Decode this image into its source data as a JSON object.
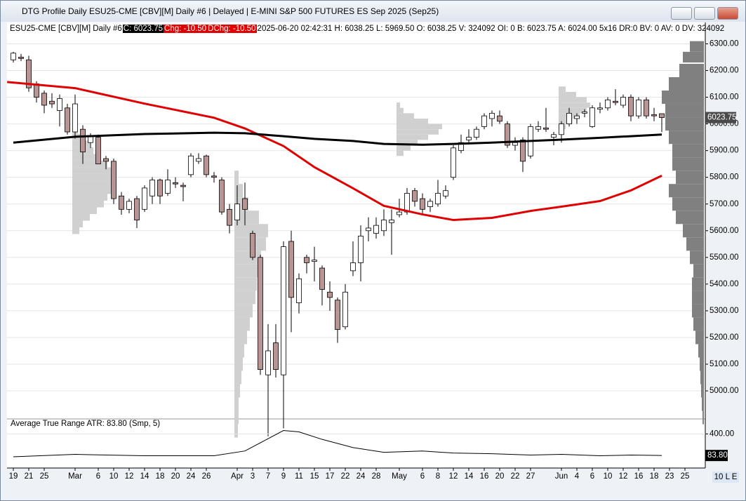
{
  "window_title": "DTG Profile Daily ESU25-CME [CBV][M]  Daily #6 | Delayed | E-MINI S&P 500 FUTURES ES Sep 2025 (Sep25)",
  "footer": "10 L E",
  "chart_data": [
    {
      "type": "candlestick",
      "header": {
        "symbol": "ESU25-CME [CBV][M]   Daily #6",
        "close": "C: 6023.75",
        "change": "Chg: -10.50",
        "dchange": "DChg: -10.50",
        "details": "2025-06-20 02:42:31 H: 6038.25 L: 5969.50 O: 6038.25 V: 324092 OI: 0 B: 6023.75 A: 6024.00 5x16 DR:0 BV: 0 AV: 0 DV: 324092"
      },
      "categories": [
        "19",
        null,
        "21",
        null,
        "25",
        null,
        null,
        null,
        "Mar",
        null,
        null,
        "6",
        null,
        "10",
        null,
        "12",
        null,
        "14",
        null,
        "18",
        null,
        "20",
        null,
        "24",
        null,
        "26",
        null,
        null,
        null,
        "Apr",
        null,
        "3",
        null,
        "7",
        null,
        "9",
        null,
        "11",
        null,
        "15",
        null,
        "17",
        null,
        "22",
        null,
        "24",
        null,
        "28",
        null,
        null,
        "May",
        null,
        null,
        "6",
        null,
        "8",
        null,
        "12",
        null,
        "14",
        null,
        "16",
        null,
        "20",
        null,
        "22",
        null,
        "27",
        null,
        null,
        null,
        "Jun",
        null,
        "4",
        null,
        "6",
        null,
        "10",
        null,
        "12",
        null,
        "16",
        null,
        "18",
        null,
        "23",
        null,
        "25"
      ],
      "candles": [
        [
          6240,
          6270,
          6230,
          6265
        ],
        [
          6250,
          6262,
          6235,
          6245
        ],
        [
          6240,
          6255,
          6120,
          6135
        ],
        [
          6150,
          6160,
          6080,
          6100
        ],
        [
          6115,
          6125,
          6040,
          6070
        ],
        [
          6085,
          6115,
          6060,
          6075
        ],
        [
          6050,
          6110,
          5990,
          6095
        ],
        [
          6060,
          6075,
          5960,
          5970
        ],
        [
          5970,
          6110,
          5945,
          6075
        ],
        [
          5980,
          5995,
          5850,
          5895
        ],
        [
          5930,
          5965,
          5910,
          5955
        ],
        [
          5950,
          5960,
          5850,
          5850
        ],
        [
          5870,
          5880,
          5830,
          5860
        ],
        [
          5860,
          5870,
          5700,
          5720
        ],
        [
          5730,
          5745,
          5660,
          5680
        ],
        [
          5680,
          5720,
          5665,
          5710
        ],
        [
          5720,
          5730,
          5610,
          5640
        ],
        [
          5680,
          5770,
          5670,
          5760
        ],
        [
          5730,
          5800,
          5700,
          5790
        ],
        [
          5790,
          5795,
          5700,
          5730
        ],
        [
          5740,
          5830,
          5730,
          5790
        ],
        [
          5780,
          5800,
          5760,
          5775
        ],
        [
          5770,
          5780,
          5710,
          5765
        ],
        [
          5810,
          5890,
          5800,
          5880
        ],
        [
          5860,
          5890,
          5850,
          5870
        ],
        [
          5880,
          5885,
          5800,
          5810
        ],
        [
          5805,
          5820,
          5780,
          5800
        ],
        [
          5790,
          5800,
          5660,
          5670
        ],
        [
          5680,
          5700,
          5590,
          5620
        ],
        [
          5640,
          5770,
          5620,
          5700
        ],
        [
          5720,
          5780,
          5620,
          5680
        ],
        [
          5590,
          5600,
          5490,
          5500
        ],
        [
          5500,
          5510,
          5060,
          5080
        ],
        [
          5060,
          5250,
          4830,
          5150
        ],
        [
          5180,
          5250,
          5050,
          5080
        ],
        [
          5060,
          5560,
          4860,
          5540
        ],
        [
          5560,
          5600,
          5220,
          5350
        ],
        [
          5330,
          5440,
          5290,
          5420
        ],
        [
          5500,
          5510,
          5440,
          5480
        ],
        [
          5485,
          5540,
          5410,
          5490
        ],
        [
          5460,
          5470,
          5320,
          5380
        ],
        [
          5370,
          5410,
          5300,
          5350
        ],
        [
          5340,
          5350,
          5180,
          5230
        ],
        [
          5240,
          5400,
          5230,
          5370
        ],
        [
          5450,
          5560,
          5430,
          5480
        ],
        [
          5480,
          5620,
          5410,
          5580
        ],
        [
          5600,
          5650,
          5560,
          5610
        ],
        [
          5590,
          5650,
          5570,
          5620
        ],
        [
          5600,
          5680,
          5580,
          5640
        ],
        [
          5630,
          5680,
          5510,
          5640
        ],
        [
          5660,
          5720,
          5650,
          5670
        ],
        [
          5670,
          5760,
          5660,
          5740
        ],
        [
          5750,
          5760,
          5690,
          5710
        ],
        [
          5720,
          5740,
          5660,
          5680
        ],
        [
          5690,
          5720,
          5670,
          5710
        ],
        [
          5700,
          5790,
          5690,
          5740
        ],
        [
          5730,
          5770,
          5720,
          5750
        ],
        [
          5800,
          5920,
          5790,
          5910
        ],
        [
          5900,
          5960,
          5890,
          5930
        ],
        [
          5940,
          5980,
          5930,
          5950
        ],
        [
          5950,
          5990,
          5940,
          5980
        ],
        [
          5990,
          6040,
          5980,
          6030
        ],
        [
          6020,
          6050,
          5990,
          6040
        ],
        [
          6030,
          6050,
          6000,
          6010
        ],
        [
          6000,
          6010,
          5910,
          5920
        ],
        [
          5920,
          5950,
          5900,
          5930
        ],
        [
          5940,
          5950,
          5820,
          5860
        ],
        [
          5880,
          6000,
          5870,
          5990
        ],
        [
          5980,
          6010,
          5970,
          5990
        ],
        [
          5985,
          6060,
          5970,
          5980
        ],
        [
          5950,
          5970,
          5920,
          5960
        ],
        [
          5960,
          6010,
          5930,
          6000
        ],
        [
          6000,
          6060,
          5990,
          6040
        ],
        [
          6020,
          6040,
          6000,
          6030
        ],
        [
          6040,
          6055,
          6025,
          6045
        ],
        [
          5990,
          6070,
          5985,
          6060
        ],
        [
          6055,
          6080,
          6040,
          6060
        ],
        [
          6060,
          6100,
          6050,
          6090
        ],
        [
          6085,
          6130,
          6070,
          6080
        ],
        [
          6070,
          6110,
          6060,
          6100
        ],
        [
          6100,
          6110,
          6010,
          6030
        ],
        [
          6030,
          6100,
          6020,
          6090
        ],
        [
          6090,
          6100,
          6020,
          6030
        ],
        [
          6035,
          6060,
          6010,
          6030
        ],
        [
          6038.25,
          6038.25,
          5969.5,
          6023.75
        ],
        null,
        null,
        null
      ],
      "up_color": "#ffffff",
      "down_color": "#b89494",
      "ylim": [
        4895,
        6380
      ],
      "yticks": [
        {
          "value": 5000,
          "label": "5000.00"
        },
        {
          "value": 5100,
          "label": "5100.00"
        },
        {
          "value": 5200,
          "label": "5200.00"
        },
        {
          "value": 5300,
          "label": "5300.00"
        },
        {
          "value": 5400,
          "label": "5400.00"
        },
        {
          "value": 5500,
          "label": "5500.00"
        },
        {
          "value": 5600,
          "label": "5600.00"
        },
        {
          "value": 5700,
          "label": "5700.00"
        },
        {
          "value": 5800,
          "label": "5800.00"
        },
        {
          "value": 5900,
          "label": "5900.00"
        },
        {
          "value": 6000,
          "label": "6000.00"
        },
        {
          "value": 6100,
          "label": "6100.00"
        },
        {
          "value": 6200,
          "label": "6200.00"
        },
        {
          "value": 6300,
          "label": "6300.00"
        }
      ],
      "grid": true,
      "last_price": 6023.75,
      "lines": [
        {
          "color": "#e00000",
          "x": [
            -0.8,
            8,
            17,
            26,
            30,
            35,
            39,
            44,
            48,
            53,
            57,
            62,
            67,
            71,
            76,
            80,
            84
          ],
          "values": [
            6157,
            6134,
            6076,
            6023,
            5983,
            5917,
            5838,
            5759,
            5693,
            5661,
            5640,
            5648,
            5674,
            5690,
            5711,
            5751,
            5806
          ]
        },
        {
          "color": "#000000",
          "x": [
            0,
            8,
            17,
            26,
            30,
            35,
            39,
            44,
            48,
            53,
            57,
            62,
            67,
            71,
            76,
            80,
            84
          ],
          "values": [
            5930,
            5952,
            5962,
            5967,
            5965,
            5954,
            5944,
            5936,
            5925,
            5922,
            5925,
            5930,
            5936,
            5941,
            5948,
            5954,
            5960
          ]
        }
      ],
      "profile": {
        "color": "#808080",
        "prices": [
          4900,
          4950,
          5000,
          5050,
          5100,
          5150,
          5200,
          5250,
          5300,
          5350,
          5400,
          5450,
          5500,
          5550,
          5600,
          5650,
          5700,
          5750,
          5800,
          5850,
          5900,
          5950,
          6000,
          6050,
          6100,
          6150,
          6200,
          6250,
          6290
        ],
        "volumes": [
          2,
          3,
          4,
          5,
          6,
          8,
          12,
          15,
          17,
          17,
          17,
          15,
          20,
          25,
          30,
          40,
          45,
          50,
          40,
          45,
          45,
          50,
          55,
          55,
          60,
          50,
          35,
          30,
          20
        ]
      },
      "local_profiles": [
        {
          "start": 8,
          "color": "#d0d0d0",
          "prices": [
            5600,
            5625,
            5650,
            5675,
            5700,
            5725,
            5750,
            5775,
            5800,
            5825,
            5850,
            5875,
            5900,
            5925,
            5950,
            5975
          ],
          "volumes": [
            10,
            15,
            25,
            35,
            45,
            50,
            55,
            58,
            60,
            55,
            50,
            40,
            30,
            25,
            15,
            8
          ]
        },
        {
          "start": 29,
          "color": "#d0d0d0",
          "prices": [
            4850,
            4900,
            4950,
            5000,
            5050,
            5100,
            5150,
            5200,
            5250,
            5300,
            5350,
            5400,
            5450,
            5500,
            5550,
            5600,
            5650,
            5700,
            5750,
            5800
          ],
          "volumes": [
            5,
            6,
            6,
            8,
            10,
            12,
            14,
            18,
            22,
            26,
            30,
            32,
            34,
            38,
            45,
            48,
            35,
            20,
            12,
            6
          ]
        },
        {
          "start": 50,
          "color": "#d0d0d0",
          "prices": [
            5890,
            5910,
            5930,
            5950,
            5970,
            5990,
            6010,
            6030,
            6050,
            6070
          ],
          "volumes": [
            10,
            20,
            30,
            45,
            60,
            65,
            45,
            25,
            10,
            5
          ]
        },
        {
          "start": 71,
          "color": "#d0d0d0",
          "prices": [
            5990,
            6010,
            6030,
            6050,
            6070,
            6090,
            6110,
            6130
          ],
          "volumes": [
            10,
            20,
            30,
            40,
            45,
            40,
            25,
            10
          ]
        }
      ]
    },
    {
      "type": "line",
      "title": "Average True Range  ATR: 83.80   (Smp, 5)",
      "color": "#000000",
      "x": [
        0,
        8,
        17,
        26,
        30,
        33,
        35,
        37,
        40,
        44,
        48,
        53,
        57,
        62,
        67,
        71,
        76,
        80,
        84
      ],
      "values": [
        65,
        100,
        80,
        80,
        150,
        330,
        450,
        430,
        320,
        200,
        130,
        150,
        120,
        110,
        90,
        100,
        80,
        90,
        83.8
      ],
      "ylim": [
        -100,
        620
      ],
      "yticks": [
        {
          "value": 400,
          "label": "400.00"
        }
      ],
      "last_value": {
        "value": 83.8,
        "label": "83.80"
      }
    }
  ]
}
